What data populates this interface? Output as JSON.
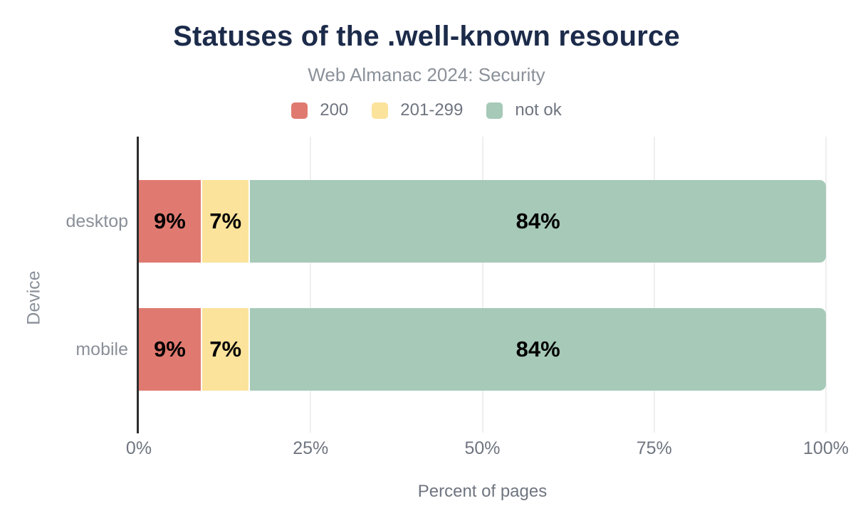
{
  "chart_data": {
    "type": "bar",
    "orientation": "horizontal",
    "stacked": true,
    "title": "Statuses of the .well-known resource",
    "subtitle": "Web Almanac 2024: Security",
    "xlabel": "Percent of pages",
    "ylabel": "Device",
    "categories": [
      "desktop",
      "mobile"
    ],
    "series": [
      {
        "name": "200",
        "color": "#e07a70",
        "values": [
          9,
          9
        ],
        "labels": [
          "9%",
          "9%"
        ]
      },
      {
        "name": "201-299",
        "color": "#fbe39b",
        "values": [
          7,
          7
        ],
        "labels": [
          "7%",
          "7%"
        ]
      },
      {
        "name": "not ok",
        "color": "#a6c9b8",
        "values": [
          84,
          84
        ],
        "labels": [
          "84%",
          "84%"
        ]
      }
    ],
    "x_ticks": [
      {
        "value": 0,
        "label": "0%"
      },
      {
        "value": 25,
        "label": "25%"
      },
      {
        "value": 50,
        "label": "50%"
      },
      {
        "value": 75,
        "label": "75%"
      },
      {
        "value": 100,
        "label": "100%"
      }
    ],
    "xlim": [
      0,
      100
    ],
    "grid": "vertical",
    "legend_position": "top"
  },
  "style": {
    "title_color": "#1c2b4a",
    "subtitle_color": "#8b9199",
    "tick_color": "#6f7580",
    "category_color": "#8a9099",
    "axis_line_color": "#2d2d2d",
    "gridline_color": "#efefef",
    "background": "#ffffff"
  }
}
